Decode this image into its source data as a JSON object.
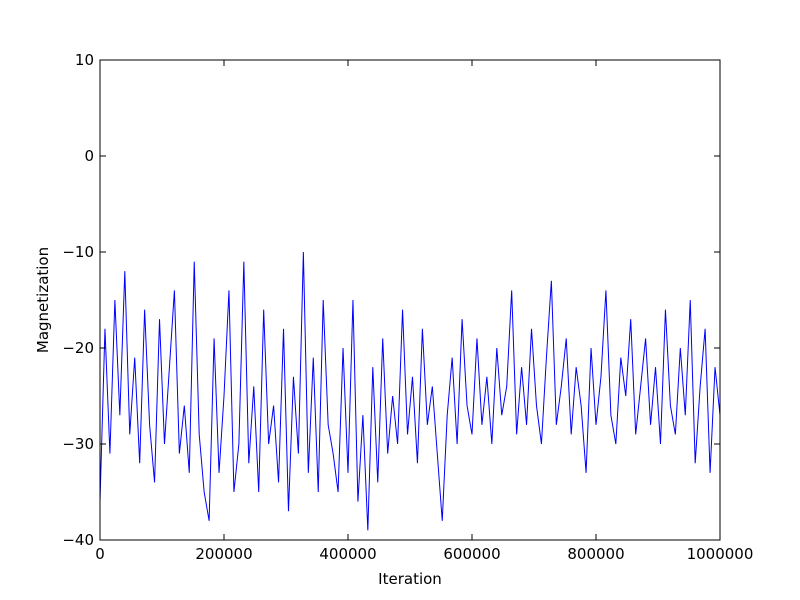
{
  "chart_data": {
    "type": "line",
    "x_label": "Iteration",
    "y_label": "Magnetization",
    "xlim": [
      0,
      1000000
    ],
    "ylim": [
      -40,
      10
    ],
    "xticks": [
      0,
      200000,
      400000,
      600000,
      800000,
      1000000
    ],
    "yticks": [
      {
        "value": -40,
        "label": "−40"
      },
      {
        "value": -30,
        "label": "−30"
      },
      {
        "value": -20,
        "label": "−20"
      },
      {
        "value": -10,
        "label": "−10"
      },
      0,
      10
    ],
    "x": [
      0,
      8000,
      16000,
      24000,
      32000,
      40000,
      48000,
      56000,
      64000,
      72000,
      80000,
      88000,
      96000,
      104000,
      112000,
      120000,
      128000,
      136000,
      144000,
      152000,
      160000,
      168000,
      176000,
      184000,
      192000,
      200000,
      208000,
      216000,
      224000,
      232000,
      240000,
      248000,
      256000,
      264000,
      272000,
      280000,
      288000,
      296000,
      304000,
      312000,
      320000,
      328000,
      336000,
      344000,
      352000,
      360000,
      368000,
      376000,
      384000,
      392000,
      400000,
      408000,
      416000,
      424000,
      432000,
      440000,
      448000,
      456000,
      464000,
      472000,
      480000,
      488000,
      496000,
      504000,
      512000,
      520000,
      528000,
      536000,
      544000,
      552000,
      560000,
      568000,
      576000,
      584000,
      592000,
      600000,
      608000,
      616000,
      624000,
      632000,
      640000,
      648000,
      656000,
      664000,
      672000,
      680000,
      688000,
      696000,
      704000,
      712000,
      720000,
      728000,
      736000,
      744000,
      752000,
      760000,
      768000,
      776000,
      784000,
      792000,
      800000,
      808000,
      816000,
      824000,
      832000,
      840000,
      848000,
      856000,
      864000,
      872000,
      880000,
      888000,
      896000,
      904000,
      912000,
      920000,
      928000,
      936000,
      944000,
      952000,
      960000,
      968000,
      976000,
      984000,
      992000,
      1000000
    ],
    "series": [
      {
        "color": "#0000ff",
        "values": [
          -36,
          -18,
          -31,
          -15,
          -27,
          -12,
          -29,
          -21,
          -32,
          -16,
          -28,
          -34,
          -17,
          -30,
          -22,
          -14,
          -31,
          -26,
          -33,
          -11,
          -29,
          -35,
          -38,
          -19,
          -33,
          -25,
          -14,
          -35,
          -30,
          -11,
          -32,
          -24,
          -35,
          -16,
          -30,
          -26,
          -34,
          -18,
          -37,
          -23,
          -31,
          -10,
          -33,
          -21,
          -35,
          -15,
          -28,
          -31,
          -35,
          -20,
          -33,
          -15,
          -36,
          -27,
          -39,
          -22,
          -34,
          -19,
          -31,
          -25,
          -30,
          -16,
          -29,
          -23,
          -32,
          -18,
          -28,
          -24,
          -31,
          -38,
          -27,
          -21,
          -30,
          -17,
          -26,
          -29,
          -19,
          -28,
          -23,
          -30,
          -20,
          -27,
          -24,
          -14,
          -29,
          -22,
          -28,
          -18,
          -26,
          -30,
          -21,
          -13,
          -28,
          -24,
          -19,
          -29,
          -22,
          -26,
          -33,
          -20,
          -28,
          -23,
          -14,
          -27,
          -30,
          -21,
          -25,
          -17,
          -29,
          -24,
          -19,
          -28,
          -22,
          -30,
          -16,
          -26,
          -29,
          -20,
          -27,
          -15,
          -32,
          -24,
          -18,
          -33,
          -22,
          -27
        ]
      }
    ]
  }
}
